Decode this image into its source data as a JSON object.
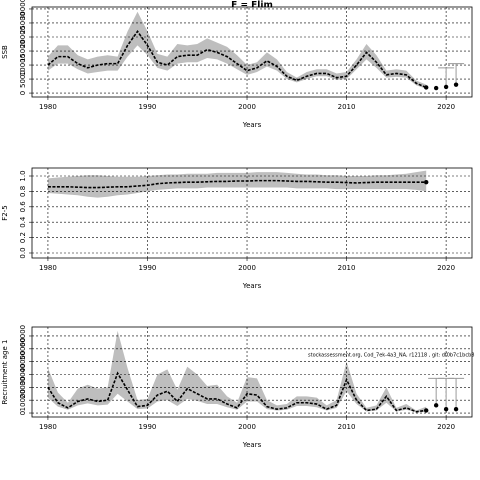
{
  "chart_data": [
    {
      "type": "line",
      "title": "F = Flim",
      "ylabel": "SSB",
      "xlabel": "Years",
      "x": [
        1980,
        1981,
        1982,
        1983,
        1984,
        1985,
        1986,
        1987,
        1988,
        1989,
        1990,
        1991,
        1992,
        1993,
        1994,
        1995,
        1996,
        1997,
        1998,
        1999,
        2000,
        2001,
        2002,
        2003,
        2004,
        2005,
        2006,
        2007,
        2008,
        2009,
        2010,
        2011,
        2012,
        2013,
        2014,
        2015,
        2016,
        2017,
        2018
      ],
      "values": [
        10000,
        13000,
        13000,
        10500,
        9000,
        10000,
        10500,
        10500,
        17000,
        22000,
        17000,
        11000,
        10000,
        13000,
        13500,
        13500,
        15500,
        14500,
        13000,
        10500,
        8000,
        9000,
        11500,
        9500,
        6000,
        4500,
        6000,
        7000,
        7000,
        5500,
        6000,
        10000,
        14500,
        11000,
        6500,
        7000,
        6500,
        3500,
        2000
      ],
      "lower": [
        8000,
        10500,
        10500,
        8500,
        7000,
        7500,
        8000,
        8000,
        13000,
        17000,
        13500,
        9000,
        8000,
        10500,
        11000,
        11000,
        12500,
        12000,
        10500,
        8500,
        6500,
        7500,
        9500,
        8000,
        5000,
        3800,
        5000,
        6000,
        6000,
        4700,
        5000,
        8500,
        12000,
        9000,
        5500,
        5800,
        5500,
        2800,
        1500
      ],
      "upper": [
        13000,
        17000,
        17000,
        13500,
        12000,
        13000,
        13500,
        13000,
        22000,
        29000,
        22000,
        14000,
        13000,
        17500,
        17000,
        17500,
        19500,
        18000,
        16500,
        13500,
        10000,
        11000,
        14500,
        12000,
        7500,
        5500,
        7500,
        8500,
        8500,
        7000,
        7500,
        12000,
        17500,
        13500,
        8000,
        8500,
        8000,
        4500,
        3000
      ],
      "proj_x": [
        2018,
        2019,
        2020,
        2021
      ],
      "proj_values": [
        2000,
        1800,
        2200,
        3000
      ],
      "proj_high": [
        null,
        null,
        9000,
        10500
      ],
      "xlim": [
        1978.4,
        2022.6
      ],
      "ylim": [
        -1400,
        30700
      ],
      "xticks": [
        1980,
        1990,
        2000,
        2010,
        2020
      ],
      "yticks": [
        0,
        5000,
        10000,
        15000,
        20000,
        25000,
        30000
      ],
      "grid": true,
      "color": "#000000",
      "band_color": "#bebebe"
    },
    {
      "type": "line",
      "ylabel": "F2-5",
      "xlabel": "Years",
      "x": [
        1980,
        1981,
        1982,
        1983,
        1984,
        1985,
        1986,
        1987,
        1988,
        1989,
        1990,
        1991,
        1992,
        1993,
        1994,
        1995,
        1996,
        1997,
        1998,
        1999,
        2000,
        2001,
        2002,
        2003,
        2004,
        2005,
        2006,
        2007,
        2008,
        2009,
        2010,
        2011,
        2012,
        2013,
        2014,
        2015,
        2016,
        2017,
        2018
      ],
      "values": [
        0.86,
        0.86,
        0.86,
        0.855,
        0.85,
        0.85,
        0.855,
        0.86,
        0.86,
        0.87,
        0.88,
        0.9,
        0.91,
        0.915,
        0.92,
        0.92,
        0.925,
        0.93,
        0.93,
        0.935,
        0.935,
        0.94,
        0.94,
        0.94,
        0.935,
        0.93,
        0.93,
        0.925,
        0.92,
        0.92,
        0.915,
        0.91,
        0.915,
        0.92,
        0.92,
        0.92,
        0.92,
        0.92,
        0.92
      ],
      "lower": [
        0.78,
        0.77,
        0.76,
        0.75,
        0.73,
        0.72,
        0.73,
        0.75,
        0.76,
        0.78,
        0.8,
        0.82,
        0.83,
        0.84,
        0.84,
        0.84,
        0.85,
        0.85,
        0.85,
        0.85,
        0.85,
        0.85,
        0.85,
        0.85,
        0.85,
        0.84,
        0.84,
        0.84,
        0.84,
        0.83,
        0.83,
        0.83,
        0.83,
        0.83,
        0.83,
        0.83,
        0.83,
        0.82,
        0.8
      ],
      "upper": [
        0.97,
        0.98,
        0.99,
        1.0,
        1.01,
        1.01,
        1.0,
        0.99,
        0.99,
        0.99,
        1.0,
        1.01,
        1.02,
        1.02,
        1.03,
        1.03,
        1.03,
        1.04,
        1.04,
        1.04,
        1.04,
        1.05,
        1.05,
        1.05,
        1.04,
        1.03,
        1.02,
        1.02,
        1.01,
        1.01,
        1.0,
        1.0,
        1.0,
        1.01,
        1.01,
        1.02,
        1.03,
        1.05,
        1.07
      ],
      "proj_x": [
        2018
      ],
      "proj_values": [
        0.92
      ],
      "proj_high": [
        null
      ],
      "xlim": [
        1978.4,
        2022.6
      ],
      "ylim": [
        -0.065,
        1.104
      ],
      "xticks": [
        1980,
        1990,
        2000,
        2010,
        2020
      ],
      "yticks": [
        {
          "value": 0,
          "label": "0.0"
        },
        0.2,
        0.4,
        0.6,
        0.8,
        {
          "value": 1,
          "label": "1.0"
        }
      ],
      "grid": true,
      "color": "#000000",
      "band_color": "#bebebe"
    },
    {
      "type": "line",
      "ylabel": "Recruitment age 1",
      "xlabel": "Years",
      "annotation": "stockassessment.org, Cod_7ek-4a3_NA, r12118 , git: df0b7c1bcb8",
      "x": [
        1980,
        1981,
        1982,
        1983,
        1984,
        1985,
        1986,
        1987,
        1988,
        1989,
        1990,
        1991,
        1992,
        1993,
        1994,
        1995,
        1996,
        1997,
        1998,
        1999,
        2000,
        2001,
        2002,
        2003,
        2004,
        2005,
        2006,
        2007,
        2008,
        2009,
        2010,
        2011,
        2012,
        2013,
        2014,
        2015,
        2016,
        2017,
        2018
      ],
      "values": [
        20000,
        8000,
        4000,
        9000,
        11000,
        9000,
        10000,
        31000,
        18000,
        5000,
        6000,
        14000,
        17000,
        9000,
        19000,
        15000,
        11000,
        11000,
        7000,
        4000,
        15000,
        14000,
        5000,
        3000,
        4000,
        8000,
        8000,
        7000,
        3000,
        6000,
        26000,
        10000,
        2000,
        3000,
        13000,
        2000,
        4000,
        1000,
        2000
      ],
      "lower": [
        12000,
        5000,
        2500,
        6000,
        7500,
        6000,
        6500,
        15000,
        9000,
        3000,
        3500,
        9000,
        10000,
        5500,
        11000,
        9500,
        7000,
        7000,
        4500,
        2500,
        9000,
        9000,
        3000,
        2000,
        2500,
        5500,
        5500,
        4500,
        2000,
        4000,
        17000,
        7000,
        1200,
        2000,
        8000,
        1200,
        2500,
        600,
        800
      ],
      "upper": [
        35000,
        16000,
        8000,
        19000,
        22000,
        19000,
        20000,
        64000,
        35000,
        10000,
        11000,
        30000,
        34000,
        18000,
        36000,
        30000,
        21000,
        22000,
        13000,
        8000,
        28000,
        27000,
        10000,
        6000,
        7000,
        13000,
        13000,
        12000,
        6000,
        10000,
        40000,
        15000,
        4000,
        6000,
        20000,
        4000,
        7000,
        2000,
        5000
      ],
      "proj_x": [
        2018,
        2019,
        2020,
        2021
      ],
      "proj_values": [
        2000,
        6000,
        3000,
        3000
      ],
      "proj_high": [
        null,
        27000,
        27000,
        27000
      ],
      "xlim": [
        1978.4,
        2022.6
      ],
      "ylim": [
        -3100,
        67000
      ],
      "xticks": [
        1980,
        1990,
        2000,
        2010,
        2020
      ],
      "yticks": [
        0,
        10000,
        20000,
        30000,
        40000,
        50000,
        60000
      ],
      "grid": true,
      "color": "#000000",
      "band_color": "#bebebe"
    }
  ]
}
